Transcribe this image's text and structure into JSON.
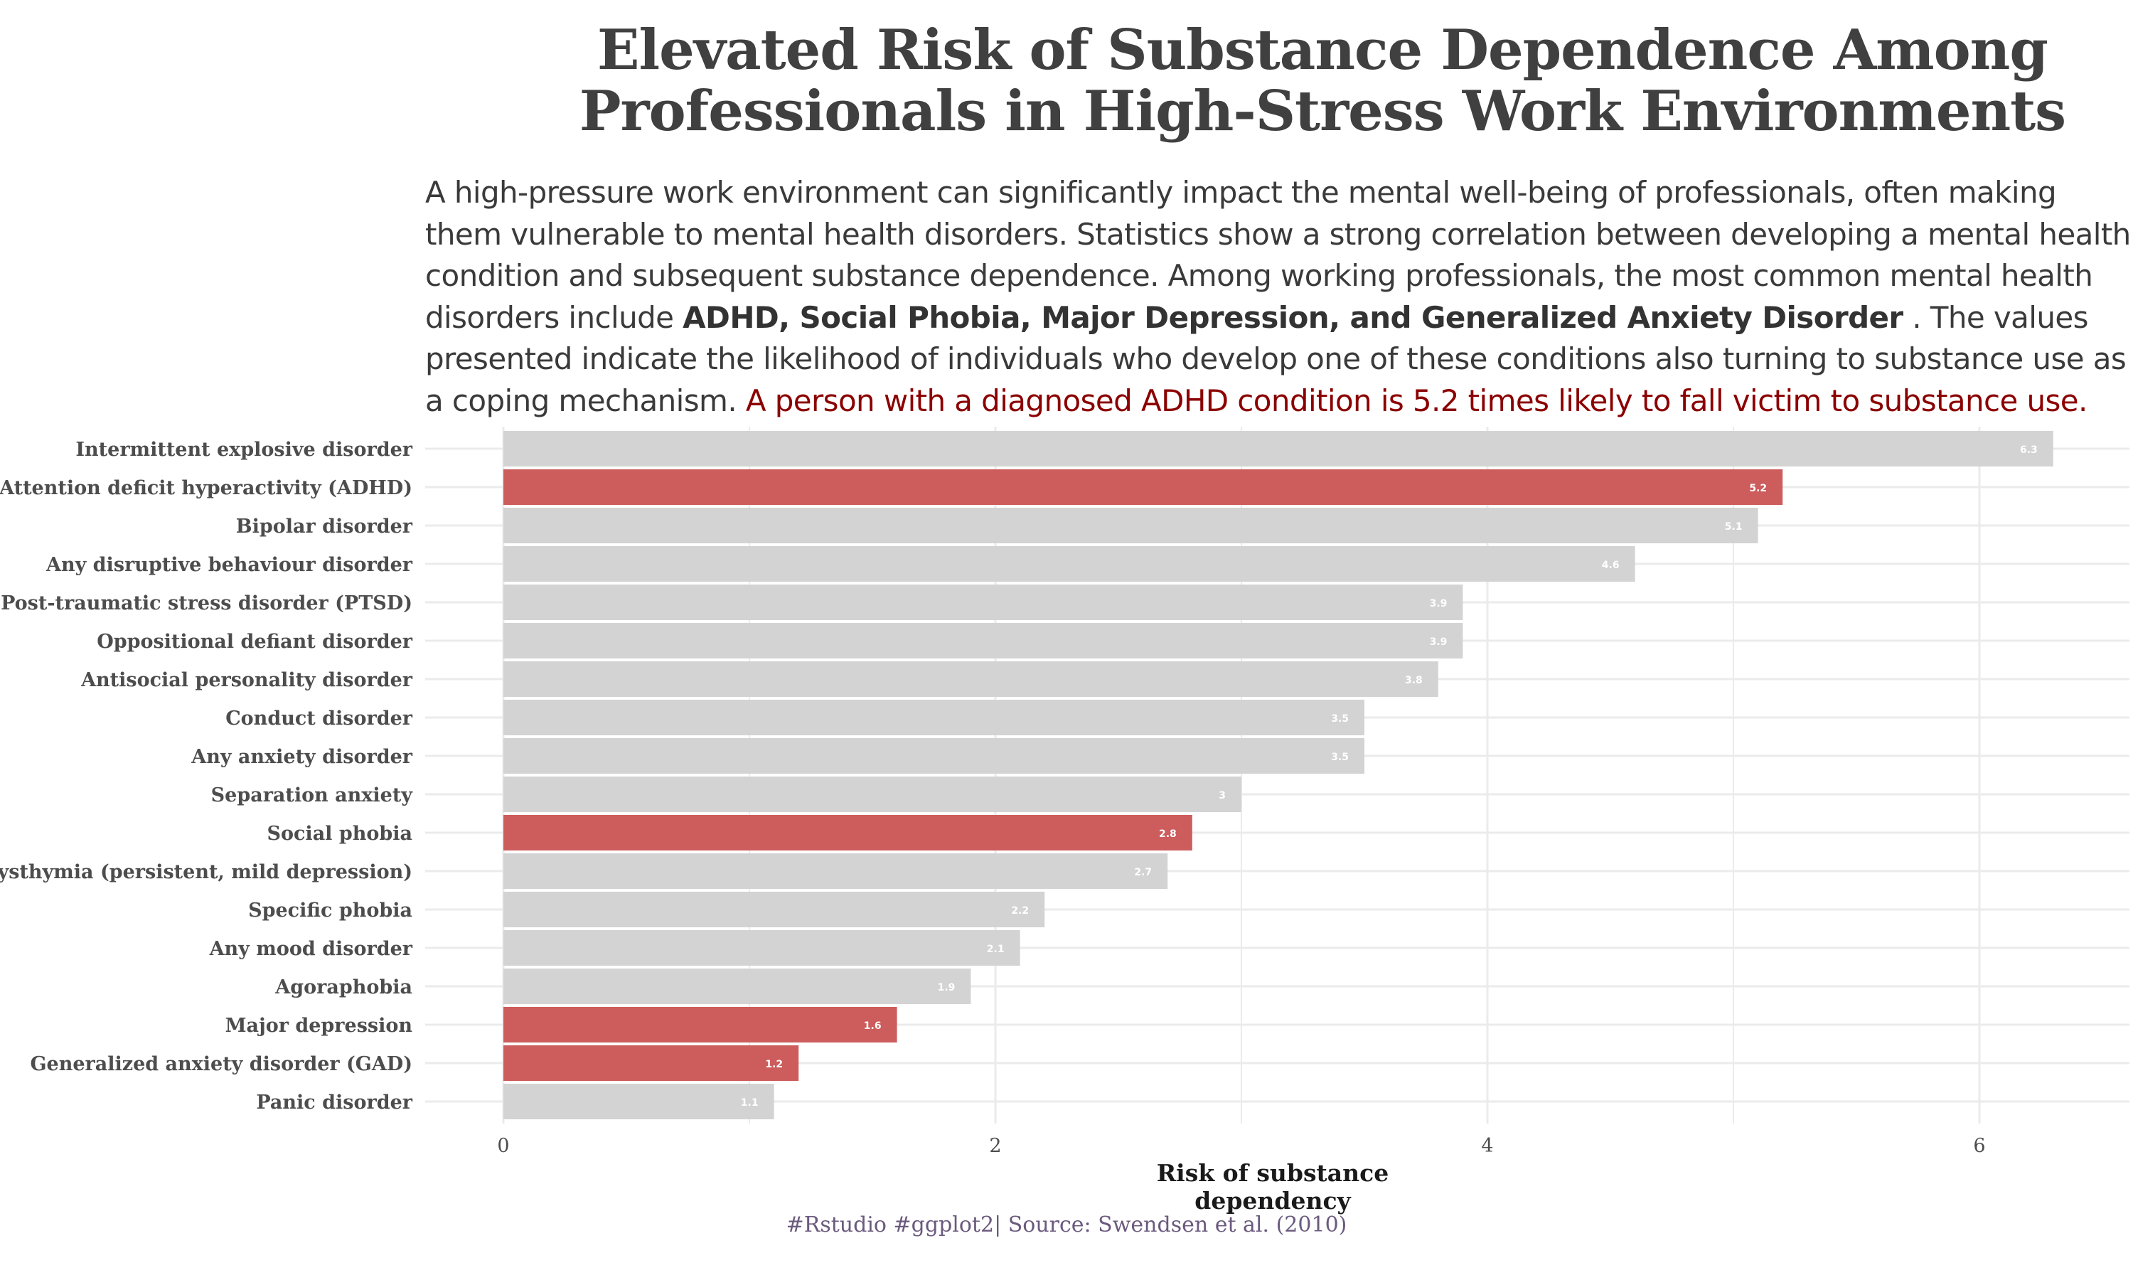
{
  "header": {
    "title_line1": "Elevated Risk of Substance Dependence Among",
    "title_line2": "Professionals in High-Stress Work Environments",
    "subtitle_part1": "A high-pressure work environment can significantly impact the mental well-being of professionals, often making them vulnerable to mental health disorders. Statistics show a strong correlation between developing a mental health condition and subsequent substance dependence. Among working professionals, the most common mental health disorders include ",
    "subtitle_bold": "ADHD, Social Phobia, Major Depression, and Generalized Anxiety Disorder",
    "subtitle_part2": " . The values presented indicate the likelihood of individuals who develop one of these conditions also turning to substance use as a coping mechanism. ",
    "subtitle_red": "A person with a diagnosed ADHD condition is 5.2 times likely to fall victim to substance use."
  },
  "caption": "#Rstudio #ggplot2| Source: Swendsen et al. (2010)",
  "colors": {
    "highlight": "#cd5c5c",
    "default": "#d3d3d3",
    "grid": "#ebebeb",
    "label_text": "#ffffff",
    "axis_text": "#4d4d4d"
  },
  "chart_data": {
    "type": "bar",
    "orientation": "horizontal",
    "title": "Elevated Risk of Substance Dependence Among Professionals in High-Stress Work Environments",
    "xlabel": "Risk of substance dependency",
    "ylabel": "",
    "xlim": [
      0,
      6.5
    ],
    "xticks": [
      0,
      2,
      4,
      6
    ],
    "grid": true,
    "legend": "none",
    "categories": [
      "Intermittent explosive disorder",
      "Attention deficit hyperactivity (ADHD)",
      "Bipolar disorder",
      "Any disruptive behaviour disorder",
      "Post-traumatic stress disorder (PTSD)",
      "Oppositional defiant disorder",
      "Antisocial personality disorder",
      "Conduct disorder",
      "Any anxiety disorder",
      "Separation anxiety",
      "Social phobia",
      "Dysthymia (persistent, mild depression)",
      "Specific phobia",
      "Any mood disorder",
      "Agoraphobia",
      "Major depression",
      "Generalized anxiety disorder (GAD)",
      "Panic disorder"
    ],
    "values": [
      6.3,
      5.2,
      5.1,
      4.6,
      3.9,
      3.9,
      3.8,
      3.5,
      3.5,
      3,
      2.8,
      2.7,
      2.2,
      2.1,
      1.9,
      1.6,
      1.2,
      1.1
    ],
    "value_labels": [
      "6.3",
      "5.2",
      "5.1",
      "4.6",
      "3.9",
      "3.9",
      "3.8",
      "3.5",
      "3.5",
      "3",
      "2.8",
      "2.7",
      "2.2",
      "2.1",
      "1.9",
      "1.6",
      "1.2",
      "1.1"
    ],
    "highlighted": [
      false,
      true,
      false,
      false,
      false,
      false,
      false,
      false,
      false,
      false,
      true,
      false,
      false,
      false,
      false,
      true,
      true,
      false
    ]
  }
}
